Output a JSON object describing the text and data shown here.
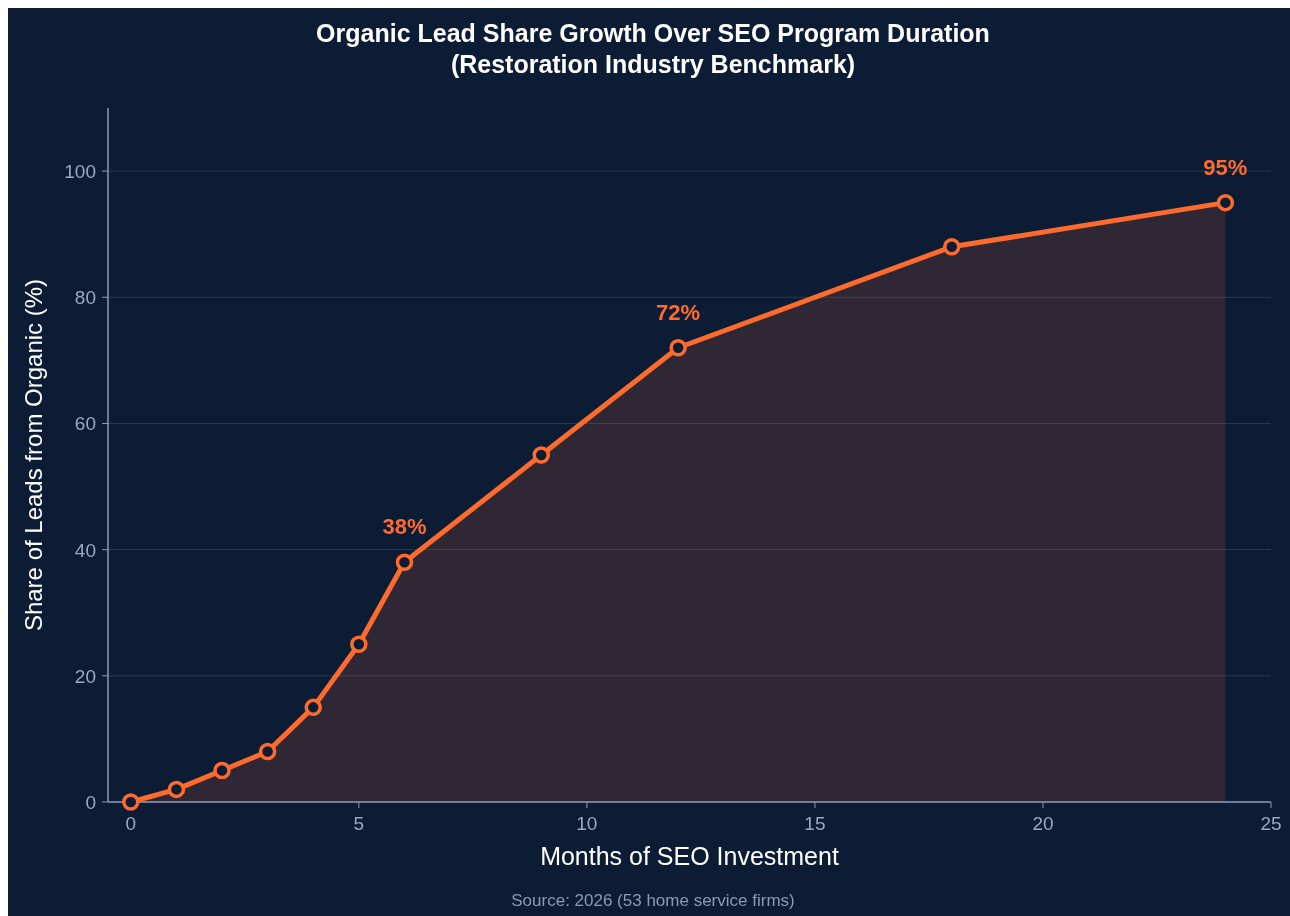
{
  "chart_data": {
    "type": "area",
    "title": "Organic Lead Share Growth Over SEO Program Duration\n(Restoration Industry Benchmark)",
    "xlabel": "Months of SEO Investment",
    "ylabel": "Share of Leads from Organic (%)",
    "x": [
      0,
      1,
      2,
      3,
      4,
      5,
      6,
      9,
      12,
      18,
      24
    ],
    "series": [
      {
        "color": "#ff6b2c",
        "values": [
          0,
          2,
          5,
          8,
          15,
          25,
          38,
          55,
          72,
          88,
          95
        ],
        "value_labels": [
          null,
          null,
          null,
          null,
          null,
          null,
          "38%",
          null,
          "72%",
          null,
          "95%"
        ]
      }
    ],
    "xlim": [
      -0.5,
      25
    ],
    "xticks": [
      0,
      5,
      10,
      15,
      20,
      25
    ],
    "ylim": [
      0,
      110
    ],
    "yticks": [
      0,
      20,
      40,
      60,
      80,
      100
    ],
    "grid": "y",
    "marker": "circle",
    "line_style": "solid",
    "annotations": [
      "Source: 2026 (53 home service firms)"
    ]
  }
}
